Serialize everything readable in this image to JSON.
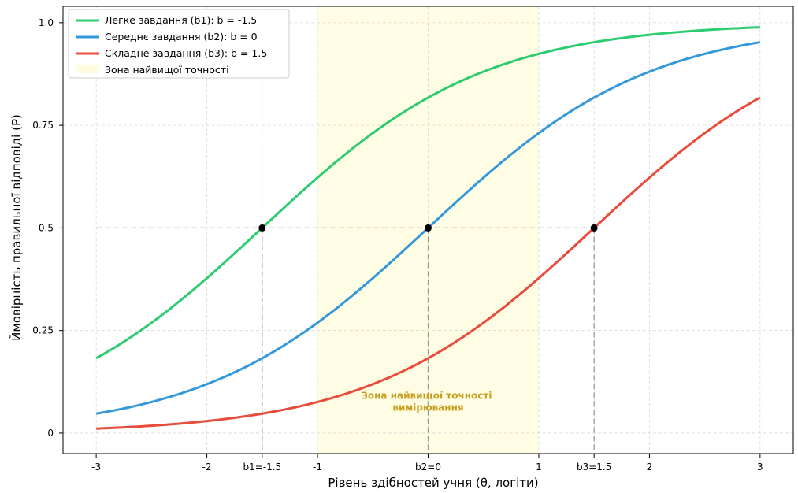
{
  "chart_data": {
    "type": "line",
    "xlabel": "Рівень здібностей учня (θ, логіти)",
    "ylabel": "Ймовірність правильної відповіді (P)",
    "xlim": [
      -3.3,
      3.3
    ],
    "ylim": [
      -0.05,
      1.04
    ],
    "x_ticks": [
      {
        "value": -3,
        "label": "-3"
      },
      {
        "value": -2,
        "label": "-2"
      },
      {
        "value": -1.5,
        "label": "b1=-1.5"
      },
      {
        "value": -1,
        "label": "-1"
      },
      {
        "value": 0,
        "label": "b2=0"
      },
      {
        "value": 1,
        "label": "1"
      },
      {
        "value": 1.5,
        "label": "b3=1.5"
      },
      {
        "value": 2,
        "label": "2"
      },
      {
        "value": 3,
        "label": "3"
      }
    ],
    "y_ticks": [
      {
        "value": 0,
        "label": "0"
      },
      {
        "value": 0.25,
        "label": "0.25"
      },
      {
        "value": 0.5,
        "label": "0.5"
      },
      {
        "value": 0.75,
        "label": "0.75"
      },
      {
        "value": 1.0,
        "label": "1.0"
      }
    ],
    "grid": true,
    "legend_position": "top-left",
    "series": [
      {
        "name": "Легке завдання (b1): b = -1.5",
        "b": -1.5,
        "color": "#2ecc71",
        "x": [
          -3,
          -2.5,
          -2,
          -1.5,
          -1,
          -0.5,
          0,
          0.5,
          1,
          1.5,
          2,
          2.5,
          3
        ],
        "values": [
          0.182,
          0.269,
          0.378,
          0.5,
          0.622,
          0.731,
          0.818,
          0.881,
          0.924,
          0.953,
          0.971,
          0.982,
          0.989
        ]
      },
      {
        "name": "Середнє завдання (b2): b = 0",
        "b": 0,
        "color": "#3498db",
        "x": [
          -3,
          -2.5,
          -2,
          -1.5,
          -1,
          -0.5,
          0,
          0.5,
          1,
          1.5,
          2,
          2.5,
          3
        ],
        "values": [
          0.047,
          0.076,
          0.119,
          0.182,
          0.269,
          0.378,
          0.5,
          0.622,
          0.731,
          0.818,
          0.881,
          0.924,
          0.953
        ]
      },
      {
        "name": "Складне завдання (b3): b = 1.5",
        "b": 1.5,
        "color": "#e74c3c",
        "x": [
          -3,
          -2.5,
          -2,
          -1.5,
          -1,
          -0.5,
          0,
          0.5,
          1,
          1.5,
          2,
          2.5,
          3
        ],
        "values": [
          0.011,
          0.018,
          0.029,
          0.047,
          0.076,
          0.119,
          0.182,
          0.269,
          0.378,
          0.5,
          0.622,
          0.731,
          0.818
        ]
      }
    ],
    "highlight_zone": {
      "x_range": [
        -1,
        1
      ],
      "legend_label": "Зона найвищої точності",
      "note_lines": [
        "Зона найвищої точності",
        "вимірювання"
      ],
      "note_position": {
        "x": 0,
        "y": 0.07
      },
      "color": "#fffde0",
      "note_color": "#c8a020"
    },
    "reference_points": [
      {
        "x": -1.5,
        "y": 0.5
      },
      {
        "x": 0,
        "y": 0.5
      },
      {
        "x": 1.5,
        "y": 0.5
      }
    ]
  }
}
